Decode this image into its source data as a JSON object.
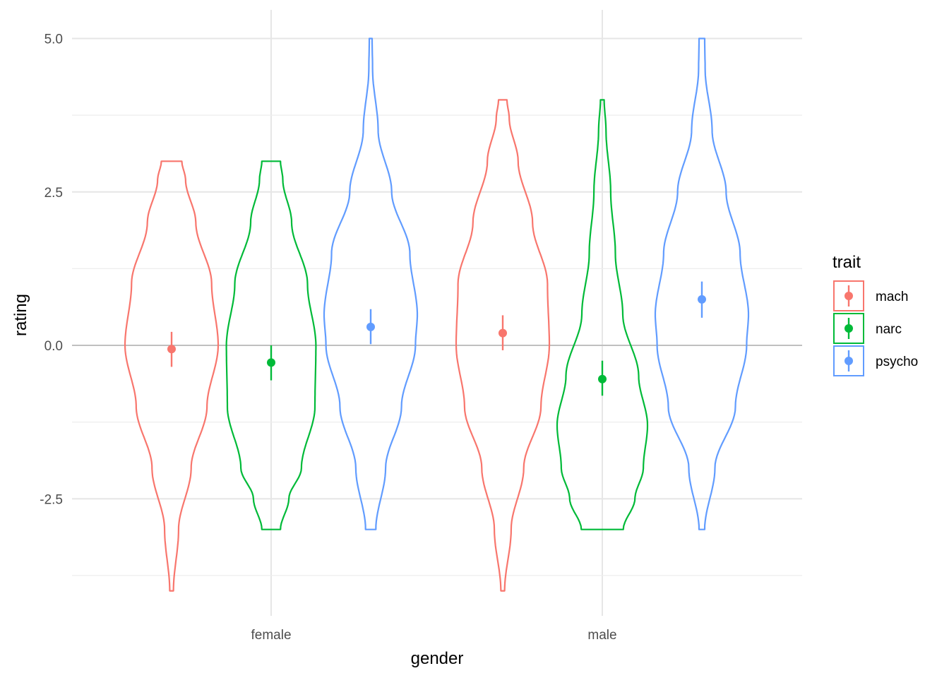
{
  "chart_data": {
    "type": "violin",
    "xlabel": "gender",
    "ylabel": "rating",
    "categories": [
      "female",
      "male"
    ],
    "ylim": [
      -4.3,
      5.4
    ],
    "y_ticks": [
      "5.0",
      "2.5",
      "0.0",
      "-2.5"
    ],
    "y_tick_values": [
      5.0,
      2.5,
      0.0,
      -2.5
    ],
    "grid": true,
    "reference_line_y": 0,
    "legend": {
      "title": "trait",
      "placement": "right"
    },
    "series": [
      {
        "name": "mach",
        "color": "#F8766D",
        "groups": [
          {
            "category": "female",
            "min": -4,
            "max": 3,
            "mean": -0.06,
            "ci": [
              -0.35,
              0.22
            ],
            "density_profile": [
              [
                -4,
                0.04
              ],
              [
                -3,
                0.15
              ],
              [
                -2,
                0.42
              ],
              [
                -1,
                0.76
              ],
              [
                0,
                1.0
              ],
              [
                1,
                0.86
              ],
              [
                2,
                0.52
              ],
              [
                2.7,
                0.3
              ],
              [
                3,
                0.22
              ]
            ]
          },
          {
            "category": "male",
            "min": -4,
            "max": 4,
            "mean": 0.2,
            "ci": [
              -0.08,
              0.49
            ],
            "density_profile": [
              [
                -4,
                0.04
              ],
              [
                -3,
                0.18
              ],
              [
                -2,
                0.45
              ],
              [
                -1,
                0.82
              ],
              [
                0,
                1.0
              ],
              [
                1,
                0.96
              ],
              [
                2,
                0.64
              ],
              [
                3,
                0.33
              ],
              [
                3.7,
                0.14
              ],
              [
                4,
                0.09
              ]
            ]
          }
        ]
      },
      {
        "name": "narc",
        "color": "#00BA38",
        "groups": [
          {
            "category": "female",
            "min": -3,
            "max": 3,
            "mean": -0.28,
            "ci": [
              -0.57,
              0.0
            ],
            "density_profile": [
              [
                -3,
                0.2
              ],
              [
                -2.5,
                0.38
              ],
              [
                -2,
                0.65
              ],
              [
                -1,
                0.94
              ],
              [
                0,
                0.96
              ],
              [
                1,
                0.78
              ],
              [
                2,
                0.44
              ],
              [
                2.7,
                0.25
              ],
              [
                3,
                0.2
              ]
            ]
          },
          {
            "category": "male",
            "min": -3,
            "max": 4,
            "mean": -0.55,
            "ci": [
              -0.82,
              -0.25
            ],
            "density_profile": [
              [
                -3,
                0.45
              ],
              [
                -2.5,
                0.7
              ],
              [
                -2,
                0.88
              ],
              [
                -1.3,
                0.97
              ],
              [
                -0.5,
                0.78
              ],
              [
                0.5,
                0.44
              ],
              [
                1.5,
                0.28
              ],
              [
                2.5,
                0.18
              ],
              [
                3.5,
                0.08
              ],
              [
                4,
                0.04
              ]
            ]
          }
        ]
      },
      {
        "name": "psycho",
        "color": "#619CFF",
        "groups": [
          {
            "category": "female",
            "min": -3,
            "max": 5,
            "mean": 0.3,
            "ci": [
              0.02,
              0.59
            ],
            "density_profile": [
              [
                -3,
                0.11
              ],
              [
                -2,
                0.32
              ],
              [
                -1,
                0.66
              ],
              [
                0,
                0.96
              ],
              [
                0.5,
                1.0
              ],
              [
                1.5,
                0.84
              ],
              [
                2.5,
                0.45
              ],
              [
                3.5,
                0.16
              ],
              [
                4.5,
                0.04
              ],
              [
                5,
                0.03
              ]
            ]
          },
          {
            "category": "male",
            "min": -3,
            "max": 5,
            "mean": 0.75,
            "ci": [
              0.45,
              1.04
            ],
            "density_profile": [
              [
                -3,
                0.06
              ],
              [
                -2,
                0.28
              ],
              [
                -1,
                0.72
              ],
              [
                0,
                0.96
              ],
              [
                0.5,
                1.0
              ],
              [
                1.5,
                0.82
              ],
              [
                2.5,
                0.52
              ],
              [
                3.5,
                0.22
              ],
              [
                4.5,
                0.07
              ],
              [
                5,
                0.06
              ]
            ]
          }
        ]
      }
    ]
  }
}
